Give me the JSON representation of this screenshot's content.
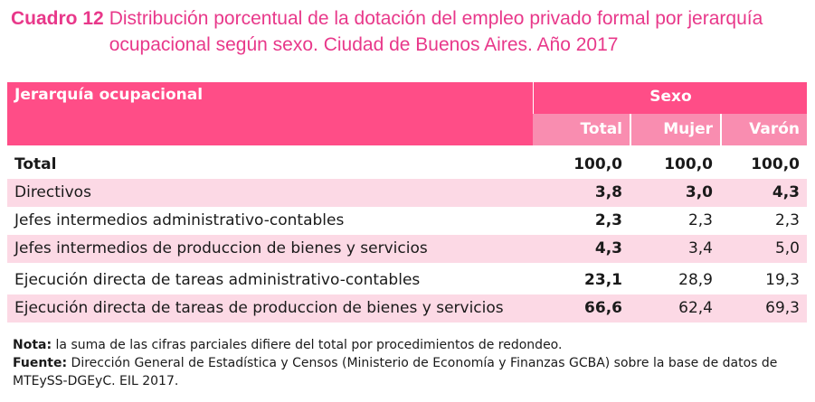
{
  "title": {
    "label": "Cuadro 12",
    "text": "Distribución porcentual de la dotación del empleo privado formal por jerarquía ocupacional según sexo. Ciudad de Buenos Aires. Año 2017"
  },
  "table": {
    "header_left": "Jerarquía ocupacional",
    "header_group": "Sexo",
    "columns": [
      "Total",
      "Mujer",
      "Varón"
    ],
    "rows": [
      {
        "label": "Total",
        "values": [
          "100,0",
          "100,0",
          "100,0"
        ]
      },
      {
        "label": "Directivos",
        "values": [
          "3,8",
          "3,0",
          "4,3"
        ]
      },
      {
        "label": "Jefes intermedios administrativo-contables",
        "values": [
          "2,3",
          "2,3",
          "2,3"
        ]
      },
      {
        "label": "Jefes intermedios de produccion de bienes y servicios",
        "values": [
          "4,3",
          "3,4",
          "5,0"
        ]
      },
      {
        "label": "Ejecución directa de tareas administrativo-contables",
        "values": [
          "23,1",
          "28,9",
          "19,3"
        ]
      },
      {
        "label": "Ejecución directa de tareas de produccion de bienes y servicios",
        "values": [
          "66,6",
          "62,4",
          "69,3"
        ]
      }
    ]
  },
  "notes": {
    "nota_label": "Nota:",
    "nota_text": " la suma de las cifras parciales difiere del total por procedimientos de redondeo.",
    "fuente_label": "Fuente:",
    "fuente_text": " Dirección General de Estadística y Censos (Ministerio de Economía y Finanzas GCBA) sobre la base de datos de MTEySS-DGEyC. EIL 2017."
  },
  "colors": {
    "accent": "#e8388a",
    "header_bg": "#ff4d87",
    "subheader_bg": "#f98db0",
    "row_shade": "#fcd9e5"
  }
}
